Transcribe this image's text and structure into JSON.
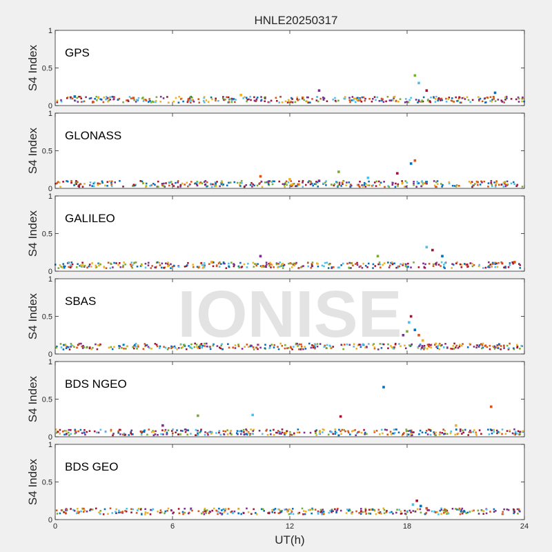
{
  "title": "HNLE20250317",
  "xlabel": "UT(h)",
  "watermark": "IONISE",
  "colors": {
    "figure_bg": "#f0f0f0",
    "axes_bg": "#ffffff",
    "axes_line": "#262626",
    "watermark": "#d9d9d9",
    "series": [
      "#0072BD",
      "#D95319",
      "#EDB120",
      "#7E2F8E",
      "#77AC30",
      "#4DBEEE",
      "#A2142F"
    ]
  },
  "chart_data": [
    {
      "type": "scatter",
      "label": "GPS",
      "ylabel": "S4 Index",
      "xlim": [
        0,
        24
      ],
      "ylim": [
        0,
        1
      ],
      "xticks": [
        0,
        6,
        12,
        18,
        24
      ],
      "yticks": [
        0,
        0.5,
        1
      ],
      "grid": false,
      "background_level": 0.08,
      "series": [
        {
          "values": [
            [
              1.0,
              0.12
            ],
            [
              4.0,
              0.1
            ],
            [
              9.5,
              0.14
            ],
            [
              13.5,
              0.2
            ],
            [
              18.4,
              0.4
            ],
            [
              18.6,
              0.3
            ],
            [
              19.0,
              0.2
            ],
            [
              22.5,
              0.17
            ]
          ]
        }
      ]
    },
    {
      "type": "scatter",
      "label": "GLONASS",
      "ylabel": "S4 Index",
      "xlim": [
        0,
        24
      ],
      "ylim": [
        0,
        1
      ],
      "xticks": [
        0,
        6,
        12,
        18,
        24
      ],
      "yticks": [
        0,
        0.5,
        1
      ],
      "grid": false,
      "background_level": 0.06,
      "series": [
        {
          "values": [
            [
              10.5,
              0.16
            ],
            [
              12.0,
              0.12
            ],
            [
              13.5,
              0.1
            ],
            [
              14.5,
              0.22
            ],
            [
              16.0,
              0.14
            ],
            [
              17.5,
              0.2
            ],
            [
              18.2,
              0.33
            ],
            [
              18.4,
              0.37
            ]
          ]
        }
      ]
    },
    {
      "type": "scatter",
      "label": "GALILEO",
      "ylabel": "S4 Index",
      "xlim": [
        0,
        24
      ],
      "ylim": [
        0,
        1
      ],
      "xticks": [
        0,
        6,
        12,
        18,
        24
      ],
      "yticks": [
        0,
        0.5,
        1
      ],
      "grid": false,
      "background_level": 0.08,
      "series": [
        {
          "values": [
            [
              8.0,
              0.12
            ],
            [
              10.5,
              0.2
            ],
            [
              16.5,
              0.2
            ],
            [
              19.0,
              0.32
            ],
            [
              19.3,
              0.28
            ],
            [
              19.8,
              0.2
            ],
            [
              23.5,
              0.12
            ]
          ]
        }
      ]
    },
    {
      "type": "scatter",
      "label": "SBAS",
      "ylabel": "S4 Index",
      "xlim": [
        0,
        24
      ],
      "ylim": [
        0,
        1
      ],
      "xticks": [
        0,
        6,
        12,
        18,
        24
      ],
      "yticks": [
        0,
        0.5,
        1
      ],
      "grid": false,
      "background_level": 0.1,
      "series": [
        {
          "values": [
            [
              17.8,
              0.25
            ],
            [
              18.0,
              0.3
            ],
            [
              18.1,
              0.42
            ],
            [
              18.2,
              0.5
            ],
            [
              18.4,
              0.32
            ],
            [
              18.6,
              0.25
            ],
            [
              18.8,
              0.18
            ]
          ]
        }
      ]
    },
    {
      "type": "scatter",
      "label": "BDS NGEO",
      "ylabel": "S4 Index",
      "xlim": [
        0,
        24
      ],
      "ylim": [
        0,
        1
      ],
      "xticks": [
        0,
        6,
        12,
        18,
        24
      ],
      "yticks": [
        0,
        0.5,
        1
      ],
      "grid": false,
      "background_level": 0.06,
      "series": [
        {
          "values": [
            [
              7.3,
              0.28
            ],
            [
              10.1,
              0.29
            ],
            [
              14.6,
              0.27
            ],
            [
              16.8,
              0.66
            ],
            [
              22.3,
              0.4
            ],
            [
              20.5,
              0.15
            ],
            [
              5.5,
              0.15
            ]
          ]
        }
      ]
    },
    {
      "type": "scatter",
      "label": "BDS GEO",
      "ylabel": "S4 Index",
      "xlim": [
        0,
        24
      ],
      "ylim": [
        0,
        1
      ],
      "xticks": [
        0,
        6,
        12,
        18,
        24
      ],
      "yticks": [
        0,
        0.5,
        1
      ],
      "grid": false,
      "background_level": 0.11,
      "series": [
        {
          "values": [
            [
              18.3,
              0.2
            ],
            [
              18.5,
              0.25
            ],
            [
              18.7,
              0.18
            ],
            [
              19.0,
              0.15
            ]
          ]
        }
      ]
    }
  ]
}
